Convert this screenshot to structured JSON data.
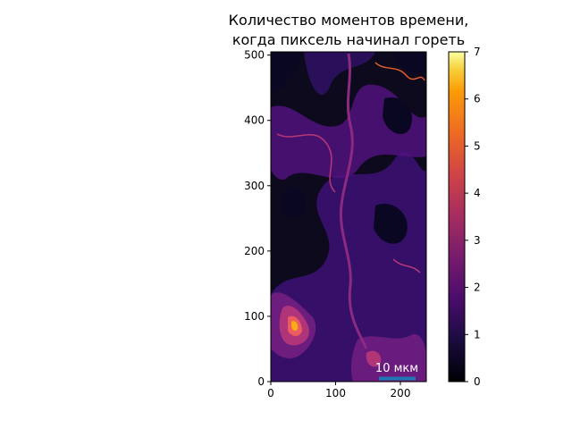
{
  "chart_data": {
    "type": "heatmap",
    "title_line1": "Количество моментов времени,",
    "title_line2": "когда пиксель начинал гореть",
    "xlabel": "",
    "ylabel": "",
    "xlim": [
      0,
      240
    ],
    "ylim": [
      0,
      505
    ],
    "xticks": [
      "0",
      "100",
      "200"
    ],
    "yticks": [
      "0",
      "100",
      "200",
      "300",
      "400",
      "500"
    ],
    "colormap": "inferno",
    "colorbar_range": [
      0,
      7
    ],
    "colorbar_ticks": [
      "0",
      "1",
      "2",
      "3",
      "4",
      "5",
      "6",
      "7"
    ],
    "scale_bar_label": "10 мкм",
    "scale_bar_color": "#1f77b4"
  }
}
